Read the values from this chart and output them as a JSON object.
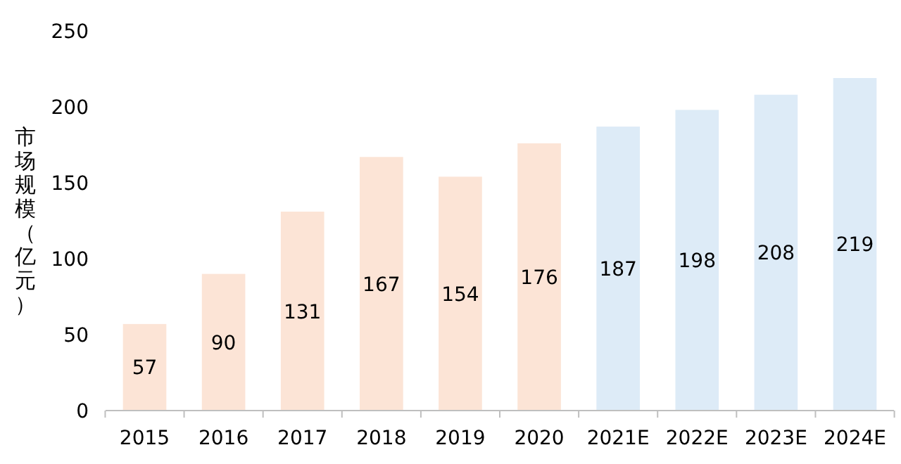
{
  "chart_data": {
    "type": "bar",
    "ylabel": "市场规模（亿元）",
    "categories": [
      "2015",
      "2016",
      "2017",
      "2018",
      "2019",
      "2020",
      "2021E",
      "2022E",
      "2023E",
      "2024E"
    ],
    "values": [
      57,
      90,
      131,
      167,
      154,
      176,
      187,
      198,
      208,
      219
    ],
    "colors": [
      "#fce4d6",
      "#fce4d6",
      "#fce4d6",
      "#fce4d6",
      "#fce4d6",
      "#fce4d6",
      "#ddebf7",
      "#ddebf7",
      "#ddebf7",
      "#ddebf7"
    ],
    "ylim": [
      0,
      250
    ],
    "yticks": [
      0,
      50,
      100,
      150,
      200,
      250
    ],
    "data_labels": true,
    "grid": false
  }
}
